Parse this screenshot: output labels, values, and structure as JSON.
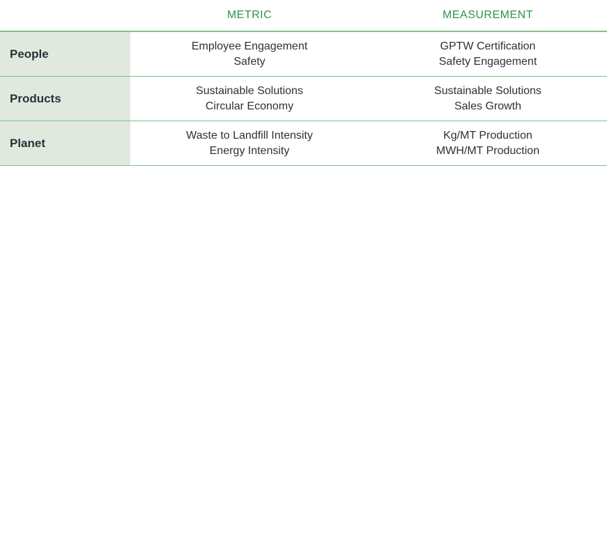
{
  "headers": [
    "",
    "METRIC",
    "MEASUREMENT"
  ],
  "rows": [
    {
      "category": "People",
      "metric": [
        "Employee Engagement",
        "Safety"
      ],
      "measurement": [
        "GPTW Certification",
        "Safety Engagement"
      ]
    },
    {
      "category": "Products",
      "metric": [
        "Sustainable Solutions",
        "Circular Economy"
      ],
      "measurement": [
        "Sustainable Solutions",
        "Sales Growth"
      ]
    },
    {
      "category": "Planet",
      "metric": [
        "Waste to Landfill Intensity",
        "Energy Intensity"
      ],
      "measurement": [
        "Kg/MT Production",
        "MWH/MT Production"
      ]
    }
  ],
  "colors": {
    "header": "#2e9444",
    "rule": "#7fbf8a",
    "category_bg": "#e1e9df"
  }
}
